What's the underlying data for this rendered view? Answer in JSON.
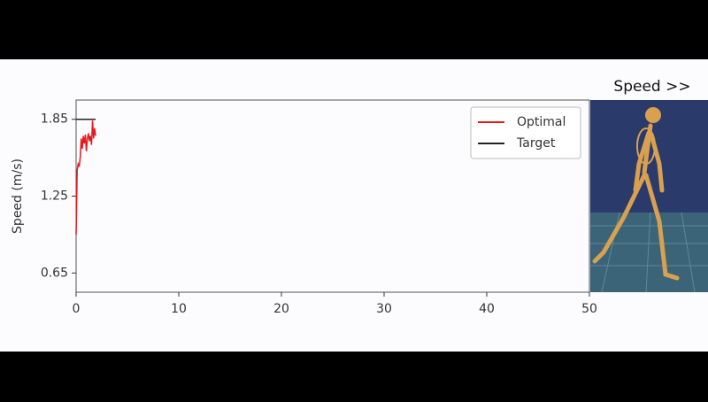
{
  "chart_data": {
    "type": "line",
    "ylabel": "Speed (m/s)",
    "xlim": [
      0,
      50
    ],
    "xticks": [
      0,
      10,
      20,
      30,
      40,
      50
    ],
    "ylim": [
      0.5,
      2.0
    ],
    "yticks": [
      0.65,
      1.25,
      1.85
    ],
    "legend": "upper right",
    "series": [
      {
        "name": "Optimal",
        "color": "#e41a1c",
        "x": [
          0,
          0.1,
          0.2,
          0.3,
          0.4,
          0.5,
          0.6,
          0.7,
          0.8,
          0.9,
          1.0,
          1.1,
          1.2,
          1.3,
          1.4,
          1.5,
          1.6,
          1.7,
          1.8,
          1.9
        ],
        "values": [
          0.95,
          1.45,
          1.5,
          1.48,
          1.55,
          1.7,
          1.62,
          1.72,
          1.66,
          1.73,
          1.6,
          1.7,
          1.74,
          1.68,
          1.72,
          1.65,
          1.84,
          1.7,
          1.78,
          1.72
        ]
      },
      {
        "name": "Target",
        "color": "#222222",
        "x": [
          0,
          1.9
        ],
        "values": [
          1.85,
          1.85
        ]
      }
    ]
  },
  "overlay": {
    "label": "Speed >>"
  }
}
